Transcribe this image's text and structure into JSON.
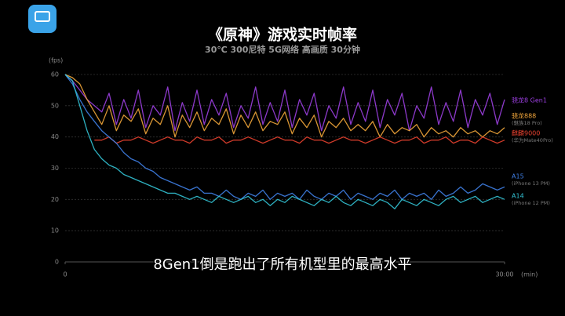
{
  "chart_data": {
    "type": "line",
    "title": "《原神》游戏实时帧率",
    "subtitle": "30℃ 300尼特 5G网络 高画质 30分钟",
    "y_label": "(fps)",
    "x_label": "(min)",
    "caption": "8Gen1倒是跑出了所有机型里的最高水平",
    "ylim": [
      0,
      60
    ],
    "yticks": [
      0,
      10,
      20,
      30,
      40,
      50,
      60
    ],
    "xlim": [
      0,
      30
    ],
    "xticks": [
      0,
      {
        "value": 30,
        "label": "30:00"
      }
    ],
    "grid": true,
    "x": [
      0,
      0.5,
      1,
      1.5,
      2,
      2.5,
      3,
      3.5,
      4,
      4.5,
      5,
      5.5,
      6,
      6.5,
      7,
      7.5,
      8,
      8.5,
      9,
      9.5,
      10,
      10.5,
      11,
      11.5,
      12,
      12.5,
      13,
      13.5,
      14,
      14.5,
      15,
      15.5,
      16,
      16.5,
      17,
      17.5,
      18,
      18.5,
      19,
      19.5,
      20,
      20.5,
      21,
      21.5,
      22,
      22.5,
      23,
      23.5,
      24,
      24.5,
      25,
      25.5,
      26,
      26.5,
      27,
      27.5,
      28,
      28.5,
      29,
      29.5,
      30
    ],
    "series": [
      {
        "name": "骁龙8 Gen1",
        "color": "#9b3fe0",
        "values": [
          60,
          58,
          55,
          52,
          50,
          48,
          54,
          44,
          52,
          46,
          55,
          43,
          50,
          47,
          56,
          42,
          51,
          45,
          55,
          44,
          52,
          47,
          54,
          43,
          50,
          46,
          56,
          44,
          51,
          45,
          55,
          43,
          52,
          47,
          54,
          42,
          50,
          46,
          56,
          44,
          51,
          45,
          55,
          43,
          52,
          47,
          54,
          42,
          50,
          46,
          56,
          44,
          51,
          45,
          55,
          43,
          52,
          47,
          54,
          44,
          52
        ]
      },
      {
        "name": "骁龙888",
        "device": "(魅族18 Pro)",
        "color": "#f0a53a",
        "values": [
          60,
          59,
          57,
          52,
          48,
          44,
          50,
          42,
          47,
          45,
          49,
          41,
          46,
          44,
          50,
          40,
          47,
          43,
          48,
          42,
          46,
          44,
          49,
          41,
          47,
          43,
          48,
          42,
          45,
          44,
          48,
          41,
          46,
          43,
          47,
          40,
          45,
          43,
          46,
          42,
          44,
          42,
          45,
          40,
          44,
          41,
          43,
          42,
          44,
          40,
          43,
          41,
          42,
          40,
          43,
          41,
          42,
          40,
          42,
          41,
          43
        ]
      },
      {
        "name": "麒麟9000",
        "device": "(华为Mate40Pro)",
        "color": "#e8412f",
        "values": [
          null,
          null,
          null,
          null,
          39,
          39,
          40,
          38,
          39,
          39,
          40,
          39,
          38,
          39,
          40,
          39,
          39,
          38,
          40,
          39,
          39,
          40,
          38,
          39,
          39,
          40,
          39,
          38,
          39,
          40,
          39,
          39,
          38,
          40,
          39,
          39,
          38,
          39,
          40,
          39,
          39,
          38,
          39,
          40,
          39,
          38,
          39,
          39,
          40,
          38,
          39,
          39,
          40,
          38,
          39,
          39,
          38,
          40,
          39,
          38,
          39
        ]
      },
      {
        "name": "A15",
        "device": "(iPhone 13 PM)",
        "color": "#3f7fe6",
        "values": [
          60,
          57,
          52,
          48,
          45,
          42,
          40,
          38,
          35,
          33,
          32,
          30,
          29,
          27,
          26,
          25,
          24,
          23,
          24,
          22,
          22,
          21,
          23,
          21,
          20,
          22,
          21,
          23,
          20,
          22,
          21,
          22,
          20,
          23,
          21,
          20,
          22,
          21,
          23,
          20,
          22,
          21,
          20,
          22,
          21,
          23,
          20,
          22,
          21,
          22,
          20,
          23,
          21,
          22,
          24,
          22,
          23,
          25,
          24,
          23,
          24
        ]
      },
      {
        "name": "A14",
        "device": "(iPhone 12 PM)",
        "color": "#33c4d6",
        "values": [
          60,
          58,
          50,
          42,
          36,
          33,
          31,
          30,
          28,
          27,
          26,
          25,
          24,
          23,
          22,
          22,
          21,
          20,
          21,
          20,
          19,
          21,
          20,
          19,
          20,
          21,
          19,
          20,
          18,
          20,
          19,
          21,
          20,
          19,
          18,
          20,
          19,
          21,
          19,
          18,
          20,
          19,
          18,
          20,
          19,
          17,
          20,
          19,
          18,
          20,
          19,
          18,
          20,
          21,
          19,
          20,
          21,
          19,
          20,
          21,
          20
        ]
      }
    ]
  }
}
